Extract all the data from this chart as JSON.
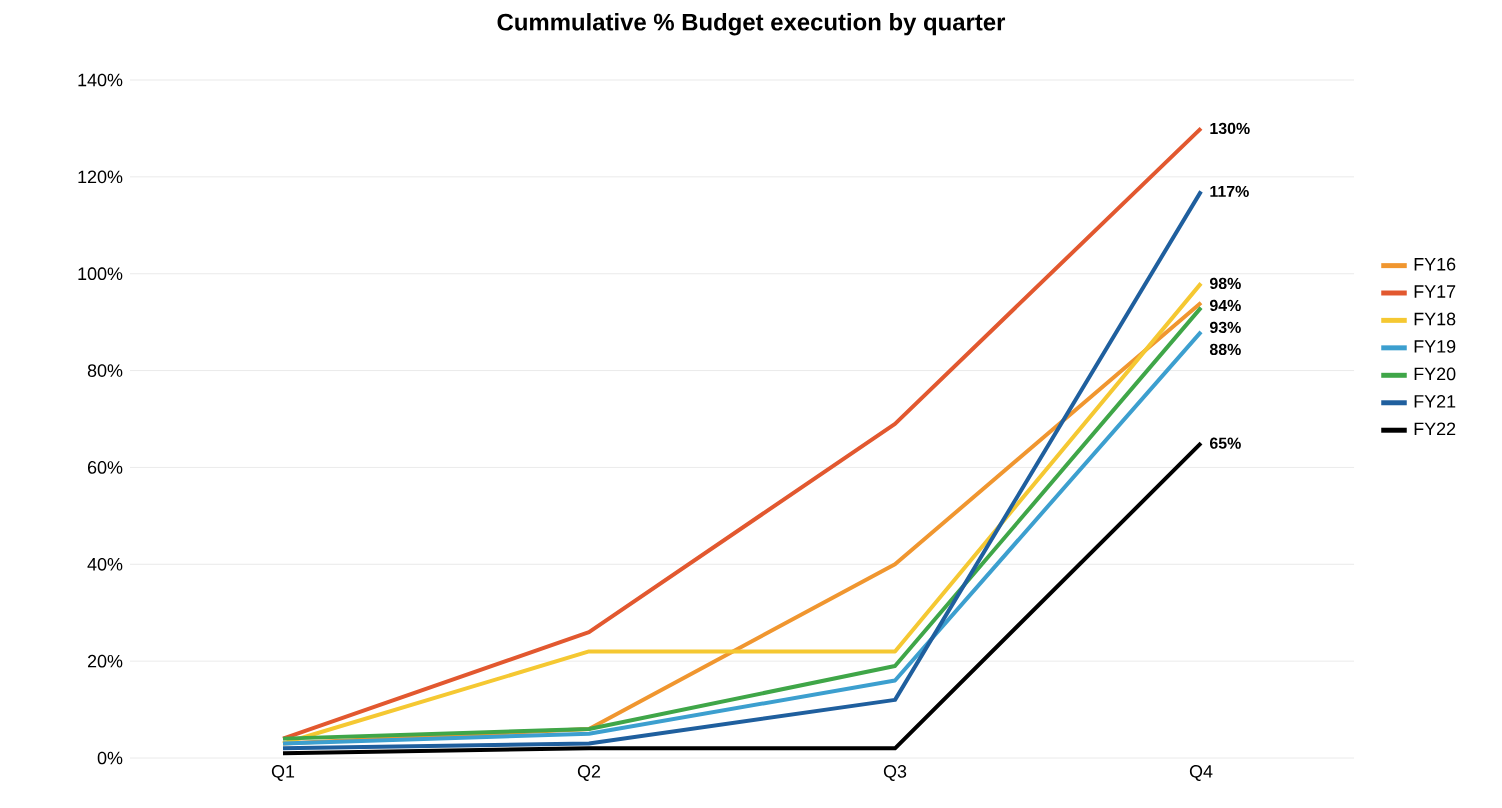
{
  "chart_data": {
    "type": "line",
    "title": "Cummulative % Budget execution by quarter",
    "categories": [
      "Q1",
      "Q2",
      "Q3",
      "Q4"
    ],
    "series": [
      {
        "name": "FY16",
        "color": "#f0962f",
        "values": [
          3,
          6,
          40,
          94
        ],
        "value_labels": [
          null,
          null,
          null,
          "94%"
        ]
      },
      {
        "name": "FY17",
        "color": "#e2582f",
        "values": [
          4,
          26,
          69,
          130
        ],
        "value_labels": [
          null,
          null,
          null,
          "130%"
        ]
      },
      {
        "name": "FY18",
        "color": "#f5c832",
        "values": [
          3,
          22,
          22,
          98
        ],
        "value_labels": [
          null,
          null,
          null,
          "98%"
        ]
      },
      {
        "name": "FY19",
        "color": "#3c9fcf",
        "values": [
          3,
          5,
          16,
          88
        ],
        "value_labels": [
          null,
          null,
          null,
          "88%"
        ]
      },
      {
        "name": "FY20",
        "color": "#3fa648",
        "values": [
          4,
          6,
          19,
          93
        ],
        "value_labels": [
          null,
          null,
          null,
          "93%"
        ]
      },
      {
        "name": "FY21",
        "color": "#1f5f9e",
        "values": [
          2,
          3,
          12,
          117
        ],
        "value_labels": [
          null,
          null,
          null,
          "117%"
        ]
      },
      {
        "name": "FY22",
        "color": "#000000",
        "values": [
          1,
          2,
          2,
          65
        ],
        "value_labels": [
          null,
          null,
          null,
          "65%"
        ]
      }
    ],
    "ylim": [
      0,
      140
    ],
    "yticks": [
      {
        "value": 0,
        "label": "0%"
      },
      {
        "value": 20,
        "label": "20%"
      },
      {
        "value": 40,
        "label": "40%"
      },
      {
        "value": 60,
        "label": "60%"
      },
      {
        "value": 80,
        "label": "80%"
      },
      {
        "value": 100,
        "label": "100%"
      },
      {
        "value": 120,
        "label": "120%"
      },
      {
        "value": 140,
        "label": "140%"
      }
    ],
    "grid": "y",
    "legend": "right",
    "marker": "none",
    "line_style": "solid"
  }
}
